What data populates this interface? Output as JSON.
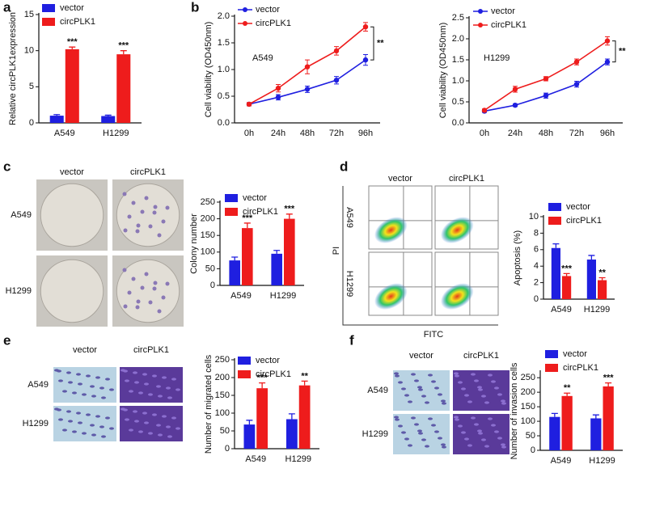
{
  "chart_data": [
    {
      "type": "bar",
      "panel": "a",
      "y_label": "Relative circPLK1expression",
      "categories": [
        "A549",
        "H1299"
      ],
      "series": [
        {
          "name": "vector",
          "color": "#1f1fe0",
          "values": [
            1.0,
            0.95
          ],
          "errors": [
            0.15,
            0.12
          ]
        },
        {
          "name": "circPLK1",
          "color": "#ee1c1c",
          "values": [
            10.2,
            9.5
          ],
          "errors": [
            0.3,
            0.5
          ]
        }
      ],
      "significance": [
        "***",
        "***"
      ],
      "ylim": [
        0,
        15
      ],
      "yticks": [
        0,
        5,
        10,
        15
      ]
    },
    {
      "type": "line",
      "panel": "b",
      "y_label": "Cell viability (OD450nm)",
      "label": "A549",
      "significance": "**",
      "categories": [
        "0h",
        "24h",
        "48h",
        "72h",
        "96h"
      ],
      "series": [
        {
          "name": "vector",
          "color": "#1f1fe0",
          "values": [
            0.35,
            0.48,
            0.63,
            0.8,
            1.18
          ],
          "errors": [
            0.03,
            0.05,
            0.06,
            0.07,
            0.1
          ]
        },
        {
          "name": "circPLK1",
          "color": "#ee1c1c",
          "values": [
            0.35,
            0.65,
            1.05,
            1.35,
            1.8
          ],
          "errors": [
            0.03,
            0.07,
            0.13,
            0.08,
            0.08
          ]
        }
      ],
      "ylim": [
        0,
        2.0
      ],
      "yticks": [
        {
          "value": 0,
          "label": "0.0"
        },
        {
          "value": 0.5,
          "label": "0.5"
        },
        {
          "value": 1,
          "label": "1.0"
        },
        {
          "value": 1.5,
          "label": "1.5"
        },
        {
          "value": 2,
          "label": "2.0"
        }
      ]
    },
    {
      "type": "line",
      "y_label": "Cell viability (OD450nm)",
      "label": "H1299",
      "significance": "**",
      "categories": [
        "0h",
        "24h",
        "48h",
        "72h",
        "96h"
      ],
      "series": [
        {
          "name": "vector",
          "color": "#1f1fe0",
          "values": [
            0.28,
            0.42,
            0.65,
            0.92,
            1.45
          ],
          "errors": [
            0.03,
            0.03,
            0.06,
            0.07,
            0.07
          ]
        },
        {
          "name": "circPLK1",
          "color": "#ee1c1c",
          "values": [
            0.3,
            0.8,
            1.05,
            1.45,
            1.95
          ],
          "errors": [
            0.03,
            0.07,
            0.05,
            0.07,
            0.1
          ]
        }
      ],
      "ylim": [
        0,
        2.5
      ],
      "yticks": [
        {
          "value": 0,
          "label": "0.0"
        },
        {
          "value": 0.5,
          "label": "0.5"
        },
        {
          "value": 1,
          "label": "1.0"
        },
        {
          "value": 1.5,
          "label": "1.5"
        },
        {
          "value": 2,
          "label": "2.0"
        },
        {
          "value": 2.5,
          "label": "2.5"
        }
      ]
    },
    {
      "type": "bar",
      "panel": "c",
      "y_label": "Colony number",
      "categories": [
        "A549",
        "H1299"
      ],
      "series": [
        {
          "name": "vector",
          "color": "#1f1fe0",
          "values": [
            75,
            95
          ],
          "errors": [
            10,
            10
          ]
        },
        {
          "name": "circPLK1",
          "color": "#ee1c1c",
          "values": [
            172,
            200
          ],
          "errors": [
            15,
            14
          ]
        }
      ],
      "significance": [
        "***",
        "***"
      ],
      "ylim": [
        0,
        250
      ],
      "yticks": [
        0,
        50,
        100,
        150,
        200,
        250
      ]
    },
    {
      "type": "bar",
      "panel": "d",
      "y_label": "Apoptosis (%)",
      "categories": [
        "A549",
        "H1299"
      ],
      "series": [
        {
          "name": "vector",
          "color": "#1f1fe0",
          "values": [
            6.2,
            4.8
          ],
          "errors": [
            0.5,
            0.5
          ]
        },
        {
          "name": "circPLK1",
          "color": "#ee1c1c",
          "values": [
            2.8,
            2.3
          ],
          "errors": [
            0.3,
            0.3
          ]
        }
      ],
      "significance": [
        "***",
        "**"
      ],
      "ylim": [
        0,
        10
      ],
      "yticks": [
        0,
        2,
        4,
        6,
        8,
        10
      ]
    },
    {
      "type": "bar",
      "panel": "e",
      "y_label": "Number of migrated cells",
      "categories": [
        "A549",
        "H1299"
      ],
      "series": [
        {
          "name": "vector",
          "color": "#1f1fe0",
          "values": [
            68,
            83
          ],
          "errors": [
            12,
            15
          ]
        },
        {
          "name": "circPLK1",
          "color": "#ee1c1c",
          "values": [
            170,
            178
          ],
          "errors": [
            15,
            12
          ]
        }
      ],
      "significance": [
        "***",
        "**"
      ],
      "ylim": [
        0,
        250
      ],
      "yticks": [
        0,
        50,
        100,
        150,
        200,
        250
      ]
    },
    {
      "type": "bar",
      "panel": "f",
      "y_label": "Number of invasion cells",
      "categories": [
        "A549",
        "H1299"
      ],
      "series": [
        {
          "name": "vector",
          "color": "#1f1fe0",
          "values": [
            115,
            110
          ],
          "errors": [
            12,
            12
          ]
        },
        {
          "name": "circPLK1",
          "color": "#ee1c1c",
          "values": [
            187,
            220
          ],
          "errors": [
            10,
            12
          ]
        }
      ],
      "significance": [
        "**",
        "***"
      ],
      "ylim": [
        0,
        270
      ],
      "yticks": [
        0,
        50,
        100,
        150,
        200,
        250
      ]
    }
  ],
  "image_panels": [
    {
      "kind": "plate",
      "columns": [
        "vector",
        "circPLK1"
      ],
      "rows": [
        "A549",
        "H1299"
      ]
    },
    {
      "kind": "flow",
      "columns": [
        "vector",
        "circPLK1"
      ],
      "rows": [
        "A549",
        "H1299"
      ],
      "y_label": "PI",
      "x_label": "FITC"
    },
    {
      "kind": "cells",
      "columns": [
        "vector",
        "circPLK1"
      ],
      "rows": [
        "A549",
        "H1299"
      ]
    },
    {
      "kind": "cells",
      "columns": [
        "vector",
        "circPLK1"
      ],
      "rows": [
        "A549",
        "H1299"
      ]
    }
  ]
}
